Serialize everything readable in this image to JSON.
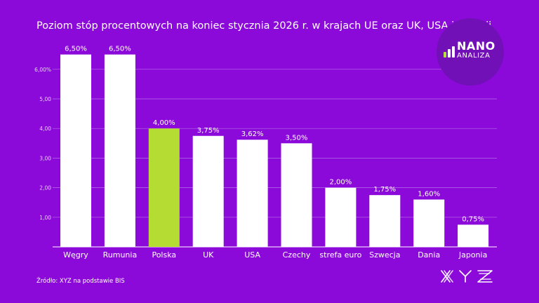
{
  "title": "Poziom stóp procentowych na koniec stycznia 2026 r. w krajach UE oraz UK, USA i Japonii",
  "source": "Źródło: XYZ na podstawie BIS",
  "logo": {
    "name": "NANO",
    "sub": "ANALIZA",
    "bar_colors": [
      "#b8e03a",
      "#ffffff",
      "#ffffff"
    ]
  },
  "brand": "XYZ",
  "colors": {
    "background": "#8c0ad9",
    "bar": "#ffffff",
    "highlight": "#b5dc32",
    "grid": "#b36fe6"
  },
  "chart_data": {
    "type": "bar",
    "title": "Poziom stóp procentowych na koniec stycznia 2026 r. w krajach UE oraz UK, USA i Japonii",
    "categories": [
      "Węgry",
      "Rumunia",
      "Polska",
      "UK",
      "USA",
      "Czechy",
      "strefa euro",
      "Szwecja",
      "Dania",
      "Japonia"
    ],
    "values": [
      6.5,
      6.5,
      4.0,
      3.75,
      3.62,
      3.5,
      2.0,
      1.75,
      1.6,
      0.75
    ],
    "data_labels": [
      "6,50%",
      "6,50%",
      "4,00%",
      "3,75%",
      "3,62%",
      "3,50%",
      "2,00%",
      "1,75%",
      "1,60%",
      "0,75%"
    ],
    "highlight": "Polska",
    "yticks": [
      1,
      2,
      3,
      4,
      5,
      6
    ],
    "ytick_labels": [
      "1,00",
      "2,00",
      "3,00",
      "4,00",
      "5,00",
      "6,00%"
    ],
    "ylim": [
      0,
      7
    ],
    "grid": true,
    "legend": "none"
  }
}
